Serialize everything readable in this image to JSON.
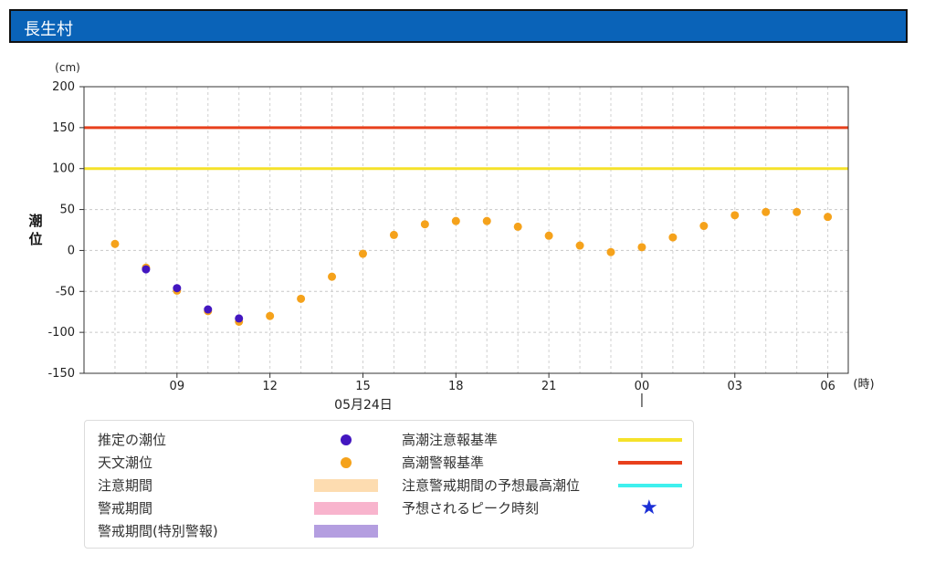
{
  "header": {
    "title": "長生村"
  },
  "chart_data": {
    "type": "scatter",
    "ylabel": "潮位",
    "yunit": "(cm)",
    "xunit": "(時)",
    "ylim": [
      -150,
      200
    ],
    "yticks": [
      -150,
      -100,
      -50,
      0,
      50,
      100,
      150,
      200
    ],
    "hours": [
      7,
      8,
      9,
      10,
      11,
      12,
      13,
      14,
      15,
      16,
      17,
      18,
      19,
      20,
      21,
      22,
      23,
      24,
      25,
      26,
      27,
      28,
      29,
      30
    ],
    "xticks": [
      {
        "hour": 9,
        "label": "09"
      },
      {
        "hour": 12,
        "label": "12"
      },
      {
        "hour": 15,
        "label": "15"
      },
      {
        "hour": 18,
        "label": "18"
      },
      {
        "hour": 21,
        "label": "21"
      },
      {
        "hour": 24,
        "label": "00"
      },
      {
        "hour": 27,
        "label": "03"
      },
      {
        "hour": 30,
        "label": "06"
      }
    ],
    "date_label": "05月24日",
    "date_marker_hour": 24,
    "grid": true,
    "thresholds": [
      {
        "name": "高潮警報基準",
        "value": 150,
        "color": "#e8401c"
      },
      {
        "name": "高潮注意報基準",
        "value": 100,
        "color": "#f5e22a"
      }
    ],
    "series": [
      {
        "name": "天文潮位",
        "color": "#f5a21b",
        "x": [
          7,
          8,
          9,
          10,
          11,
          12,
          13,
          14,
          15,
          16,
          17,
          18,
          19,
          20,
          21,
          22,
          23,
          24,
          25,
          26,
          27,
          28,
          29,
          30
        ],
        "y": [
          8,
          -21,
          -49,
          -74,
          -87,
          -80,
          -59,
          -32,
          -4,
          19,
          32,
          36,
          36,
          29,
          18,
          6,
          -2,
          4,
          16,
          30,
          43,
          47,
          47,
          41
        ]
      },
      {
        "name": "推定の潮位",
        "color": "#4316c0",
        "x": [
          8,
          9,
          10,
          11
        ],
        "y": [
          -23,
          -46,
          -72,
          -83
        ]
      }
    ]
  },
  "legend": {
    "items": [
      {
        "label": "推定の潮位",
        "kind": "dot",
        "color": "#4316c0"
      },
      {
        "label": "天文潮位",
        "kind": "dot",
        "color": "#f5a21b"
      },
      {
        "label": "注意期間",
        "kind": "swatch",
        "color": "#fddcb0"
      },
      {
        "label": "警戒期間",
        "kind": "swatch",
        "color": "#f8b4cd"
      },
      {
        "label": "警戒期間(特別警報)",
        "kind": "swatch",
        "color": "#b49ee0"
      },
      {
        "label": "高潮注意報基準",
        "kind": "line",
        "color": "#f5e22a"
      },
      {
        "label": "高潮警報基準",
        "kind": "line",
        "color": "#e8401c"
      },
      {
        "label": "注意警戒期間の予想最高潮位",
        "kind": "line",
        "color": "#3ff0ee"
      },
      {
        "label": "予想されるピーク時刻",
        "kind": "star",
        "color": "#1b2fd6",
        "glyph": "★"
      }
    ]
  }
}
